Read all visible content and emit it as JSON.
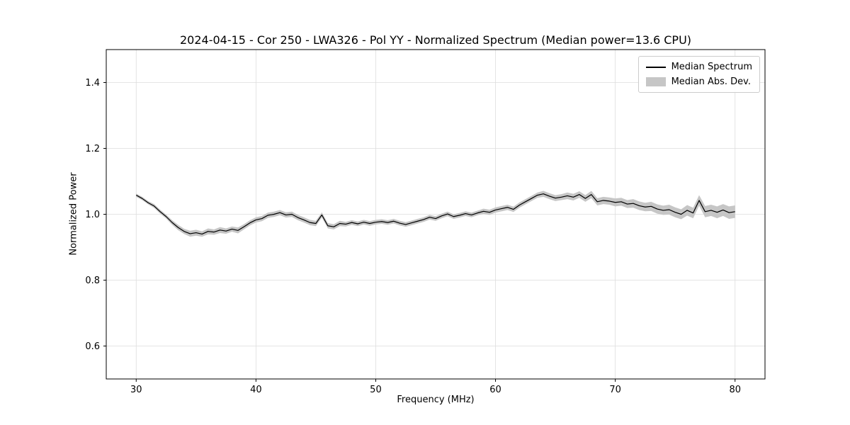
{
  "chart_data": {
    "type": "line",
    "title": "2024-04-15 - Cor 250 - LWA326 - Pol YY - Normalized Spectrum (Median power=13.6 CPU)",
    "xlabel": "Frequency (MHz)",
    "ylabel": "Normalized Power",
    "xlim": [
      27.5,
      82.5
    ],
    "ylim": [
      0.5,
      1.5
    ],
    "xticks": [
      30,
      40,
      50,
      60,
      70,
      80
    ],
    "yticks": [
      0.6,
      0.8,
      1.0,
      1.2,
      1.4
    ],
    "grid": true,
    "legend_position": "upper right",
    "colors": {
      "line": "#000000",
      "band": "#c6c6c6",
      "grid": "#dddddd",
      "spine": "#000000"
    },
    "legend": {
      "entries": [
        {
          "label": "Median Spectrum",
          "type": "line",
          "color": "#000000"
        },
        {
          "label": "Median Abs. Dev.",
          "type": "patch",
          "color": "#c6c6c6"
        }
      ]
    },
    "x": [
      30.0,
      30.5,
      31.0,
      31.5,
      32.0,
      32.5,
      33.0,
      33.5,
      34.0,
      34.5,
      35.0,
      35.5,
      36.0,
      36.5,
      37.0,
      37.5,
      38.0,
      38.5,
      39.0,
      39.5,
      40.0,
      40.5,
      41.0,
      41.5,
      42.0,
      42.5,
      43.0,
      43.5,
      44.0,
      44.5,
      45.0,
      45.5,
      46.0,
      46.5,
      47.0,
      47.5,
      48.0,
      48.5,
      49.0,
      49.5,
      50.0,
      50.5,
      51.0,
      51.5,
      52.0,
      52.5,
      53.0,
      53.5,
      54.0,
      54.5,
      55.0,
      55.5,
      56.0,
      56.5,
      57.0,
      57.5,
      58.0,
      58.5,
      59.0,
      59.5,
      60.0,
      60.5,
      61.0,
      61.5,
      62.0,
      62.5,
      63.0,
      63.5,
      64.0,
      64.5,
      65.0,
      65.5,
      66.0,
      66.5,
      67.0,
      67.5,
      68.0,
      68.5,
      69.0,
      69.5,
      70.0,
      70.5,
      71.0,
      71.5,
      72.0,
      72.5,
      73.0,
      73.5,
      74.0,
      74.5,
      75.0,
      75.5,
      76.0,
      76.5,
      77.0,
      77.5,
      78.0,
      78.5,
      79.0,
      79.5,
      80.0
    ],
    "series": [
      {
        "name": "Median Spectrum",
        "values": [
          1.058,
          1.048,
          1.035,
          1.025,
          1.008,
          0.993,
          0.975,
          0.96,
          0.948,
          0.941,
          0.944,
          0.94,
          0.948,
          0.946,
          0.952,
          0.949,
          0.955,
          0.951,
          0.962,
          0.974,
          0.983,
          0.987,
          0.997,
          1.0,
          1.005,
          0.998,
          1.0,
          0.99,
          0.983,
          0.975,
          0.972,
          0.998,
          0.965,
          0.962,
          0.972,
          0.97,
          0.975,
          0.971,
          0.976,
          0.972,
          0.976,
          0.978,
          0.975,
          0.979,
          0.973,
          0.969,
          0.974,
          0.979,
          0.984,
          0.991,
          0.987,
          0.995,
          1.001,
          0.993,
          0.997,
          1.002,
          0.998,
          1.004,
          1.009,
          1.006,
          1.013,
          1.017,
          1.021,
          1.015,
          1.028,
          1.038,
          1.048,
          1.058,
          1.062,
          1.055,
          1.049,
          1.052,
          1.056,
          1.052,
          1.06,
          1.048,
          1.06,
          1.038,
          1.042,
          1.04,
          1.036,
          1.038,
          1.031,
          1.033,
          1.026,
          1.022,
          1.024,
          1.016,
          1.012,
          1.014,
          1.006,
          1.0,
          1.012,
          1.004,
          1.042,
          1.008,
          1.012,
          1.006,
          1.013,
          1.005,
          1.008
        ]
      },
      {
        "name": "Median Abs. Dev. (half-width)",
        "values": [
          0.005,
          0.005,
          0.005,
          0.006,
          0.006,
          0.006,
          0.007,
          0.008,
          0.008,
          0.009,
          0.009,
          0.008,
          0.009,
          0.008,
          0.009,
          0.008,
          0.008,
          0.009,
          0.008,
          0.008,
          0.008,
          0.008,
          0.008,
          0.008,
          0.008,
          0.008,
          0.008,
          0.008,
          0.008,
          0.008,
          0.008,
          0.008,
          0.008,
          0.008,
          0.008,
          0.007,
          0.007,
          0.007,
          0.007,
          0.007,
          0.007,
          0.007,
          0.007,
          0.007,
          0.007,
          0.007,
          0.007,
          0.007,
          0.007,
          0.007,
          0.007,
          0.007,
          0.007,
          0.007,
          0.007,
          0.007,
          0.007,
          0.007,
          0.008,
          0.008,
          0.008,
          0.008,
          0.008,
          0.008,
          0.008,
          0.008,
          0.008,
          0.008,
          0.009,
          0.009,
          0.009,
          0.009,
          0.01,
          0.01,
          0.01,
          0.01,
          0.011,
          0.011,
          0.011,
          0.011,
          0.012,
          0.012,
          0.012,
          0.013,
          0.013,
          0.013,
          0.014,
          0.014,
          0.014,
          0.015,
          0.015,
          0.015,
          0.016,
          0.016,
          0.016,
          0.017,
          0.017,
          0.018,
          0.018,
          0.019,
          0.019
        ]
      }
    ]
  }
}
